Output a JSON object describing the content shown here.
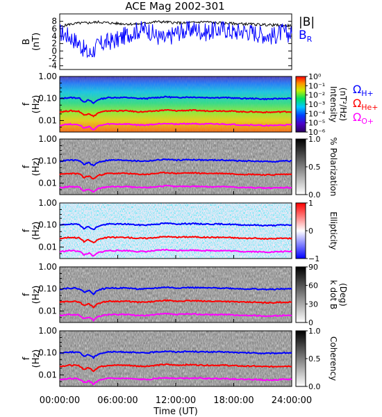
{
  "title": "ACE Mag 2002-301",
  "colors": {
    "b_total": "#000000",
    "b_r": "#0000ff",
    "gyro_h": "#0000ff",
    "gyro_he": "#ff0000",
    "gyro_o": "#ff00ff"
  },
  "x_axis": {
    "label": "Time (UT)",
    "ticks": [
      "00:00:00",
      "06:00:00",
      "12:00:00",
      "18:00:00",
      "24:00:00"
    ],
    "range_hours": [
      0,
      24
    ]
  },
  "chart_data": [
    {
      "type": "line",
      "panel": "B",
      "ylabel": "B",
      "yunit": "(nT)",
      "ylim": [
        -5,
        10
      ],
      "yticks": [
        "-4",
        "-2",
        "0",
        "2",
        "4",
        "6",
        "8"
      ],
      "legend": [
        {
          "label": "|B|",
          "color": "#000000"
        },
        {
          "label": "B",
          "subscript": "R",
          "color": "#0000ff"
        }
      ],
      "series": [
        {
          "name": "|B|",
          "x_hours": [
            0,
            1,
            2,
            3,
            4,
            5,
            6,
            7,
            8,
            9,
            10,
            11,
            12,
            13,
            14,
            15,
            16,
            17,
            18,
            19,
            20,
            21,
            22,
            23,
            24
          ],
          "values": [
            6.5,
            7.2,
            7.5,
            7.6,
            7.8,
            7.6,
            7.4,
            7.3,
            7.2,
            7.6,
            7.9,
            7.8,
            7.6,
            7.5,
            7.7,
            7.9,
            7.6,
            7.5,
            7.4,
            7.3,
            7.2,
            7.1,
            7.0,
            6.9,
            6.8
          ]
        },
        {
          "name": "B_R",
          "x_hours": [
            0,
            1,
            2,
            3,
            4,
            5,
            6,
            7,
            8,
            9,
            10,
            11,
            12,
            13,
            14,
            15,
            16,
            17,
            18,
            19,
            20,
            21,
            22,
            23,
            24
          ],
          "values": [
            5.0,
            4.0,
            2.0,
            -1.0,
            1.5,
            2.5,
            3.0,
            4.5,
            5.5,
            6.0,
            4.0,
            3.0,
            5.0,
            5.5,
            6.0,
            5.0,
            5.5,
            6.0,
            5.0,
            5.5,
            5.0,
            4.5,
            4.0,
            5.0,
            4.5
          ]
        }
      ]
    },
    {
      "type": "heatmap",
      "panel": "Intensity",
      "ylabel": "f",
      "yunit": "(Hz)",
      "yscale": "log",
      "ylim": [
        0.003,
        1.0
      ],
      "yticks": [
        "1.00",
        "0.10",
        "0.01"
      ],
      "colorbar": {
        "label": "Intensity",
        "unit": "(nT²/Hz)",
        "ticks": [
          "10⁰",
          "10⁻¹",
          "10⁻²",
          "10⁻³",
          "10⁻⁴",
          "10⁻⁵",
          "10⁻⁶"
        ],
        "scale": "log",
        "range": [
          1e-06,
          1
        ]
      },
      "legend": [
        {
          "label": "Ω",
          "subscript": "H+",
          "color": "#0000ff"
        },
        {
          "label": "Ω",
          "subscript": "He+",
          "color": "#ff0000"
        },
        {
          "label": "Ω",
          "subscript": "O+",
          "color": "#ff00ff"
        }
      ]
    },
    {
      "type": "heatmap",
      "panel": "Polarization",
      "ylabel": "f",
      "yunit": "(Hz)",
      "yscale": "log",
      "ylim": [
        0.003,
        1.0
      ],
      "yticks": [
        "1.00",
        "0.10",
        "0.01"
      ],
      "colorbar": {
        "label": "% Polarization",
        "ticks": [
          "1.0",
          "0.5",
          "0.0"
        ],
        "range": [
          0,
          1
        ]
      }
    },
    {
      "type": "heatmap",
      "panel": "Ellipticity",
      "ylabel": "f",
      "yunit": "(Hz)",
      "yscale": "log",
      "ylim": [
        0.003,
        1.0
      ],
      "yticks": [
        "1.00",
        "0.10",
        "0.01"
      ],
      "colorbar": {
        "label": "Ellipticity",
        "ticks": [
          "1",
          "0",
          "−1"
        ],
        "range": [
          -1,
          1
        ]
      }
    },
    {
      "type": "heatmap",
      "panel": "k dot B",
      "ylabel": "f",
      "yunit": "(Hz)",
      "yscale": "log",
      "ylim": [
        0.003,
        1.0
      ],
      "yticks": [
        "1.00",
        "0.10",
        "0.01"
      ],
      "colorbar": {
        "label": "k dot B",
        "unit": "(Deg)",
        "ticks": [
          "90",
          "60",
          "30",
          "0"
        ],
        "range": [
          0,
          90
        ]
      }
    },
    {
      "type": "heatmap",
      "panel": "Coherency",
      "ylabel": "f",
      "yunit": "(Hz)",
      "yscale": "log",
      "ylim": [
        0.003,
        1.0
      ],
      "yticks": [
        "1.00",
        "0.10",
        "0.01"
      ],
      "colorbar": {
        "label": "Coherency",
        "ticks": [
          "1.0",
          "0.5",
          "0.0"
        ],
        "range": [
          0,
          1
        ]
      }
    }
  ],
  "gyrofrequency_hz": {
    "x_hours": [
      0,
      1,
      2,
      2.5,
      3,
      3.5,
      4,
      5,
      6,
      7,
      8,
      9,
      10,
      11,
      12,
      13,
      14,
      15,
      16,
      17,
      18,
      19,
      20,
      21,
      22,
      23,
      24
    ],
    "h_plus": [
      0.098,
      0.11,
      0.105,
      0.07,
      0.085,
      0.06,
      0.09,
      0.11,
      0.11,
      0.11,
      0.1,
      0.1,
      0.11,
      0.12,
      0.11,
      0.115,
      0.115,
      0.11,
      0.11,
      0.11,
      0.105,
      0.1,
      0.1,
      0.095,
      0.095,
      0.1,
      0.1
    ]
  }
}
